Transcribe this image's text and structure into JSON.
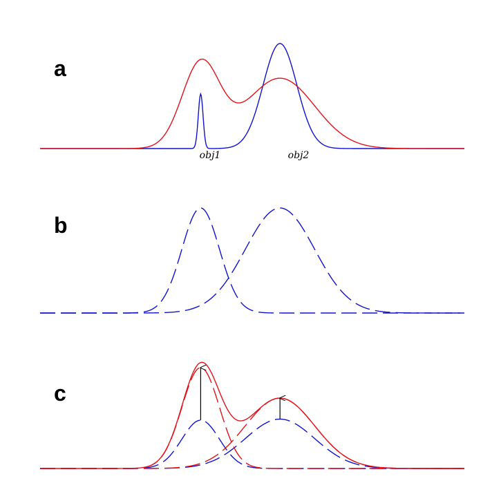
{
  "panels": [
    {
      "label": "a"
    },
    {
      "label": "b"
    },
    {
      "label": "c"
    }
  ],
  "objects": [
    {
      "label": "obj1",
      "center": 0.0
    },
    {
      "label": "obj2",
      "center": 4.0
    }
  ],
  "colors": {
    "observed": "#e0111a",
    "component": "#1010d0",
    "arrow": "#000000"
  },
  "model": {
    "x_range": [
      -8.1,
      13.3
    ],
    "panel_a": {
      "observed_components": [
        {
          "center": 0.0,
          "amplitude": 0.8,
          "sigma": 0.95
        },
        {
          "center": 4.0,
          "amplitude": 0.67,
          "sigma": 1.75
        }
      ],
      "true_profiles": [
        {
          "center": 0.0,
          "amplitude": 0.52,
          "sigma": 0.12
        },
        {
          "center": 4.0,
          "amplitude": 1.0,
          "sigma": 0.85
        }
      ]
    },
    "panel_b": {
      "components": [
        {
          "center": 0.0,
          "amplitude": 1.0,
          "sigma": 0.95
        },
        {
          "center": 4.0,
          "amplitude": 1.0,
          "sigma": 1.75
        }
      ]
    },
    "panel_c": {
      "model_components": [
        {
          "center": 0.0,
          "amplitude": 0.46,
          "sigma": 0.95
        },
        {
          "center": 4.0,
          "amplitude": 0.47,
          "sigma": 1.75
        }
      ],
      "scaled_components": [
        {
          "center": 0.0,
          "amplitude": 0.96,
          "sigma": 0.95
        },
        {
          "center": 4.0,
          "amplitude": 0.67,
          "sigma": 1.75
        }
      ]
    }
  }
}
